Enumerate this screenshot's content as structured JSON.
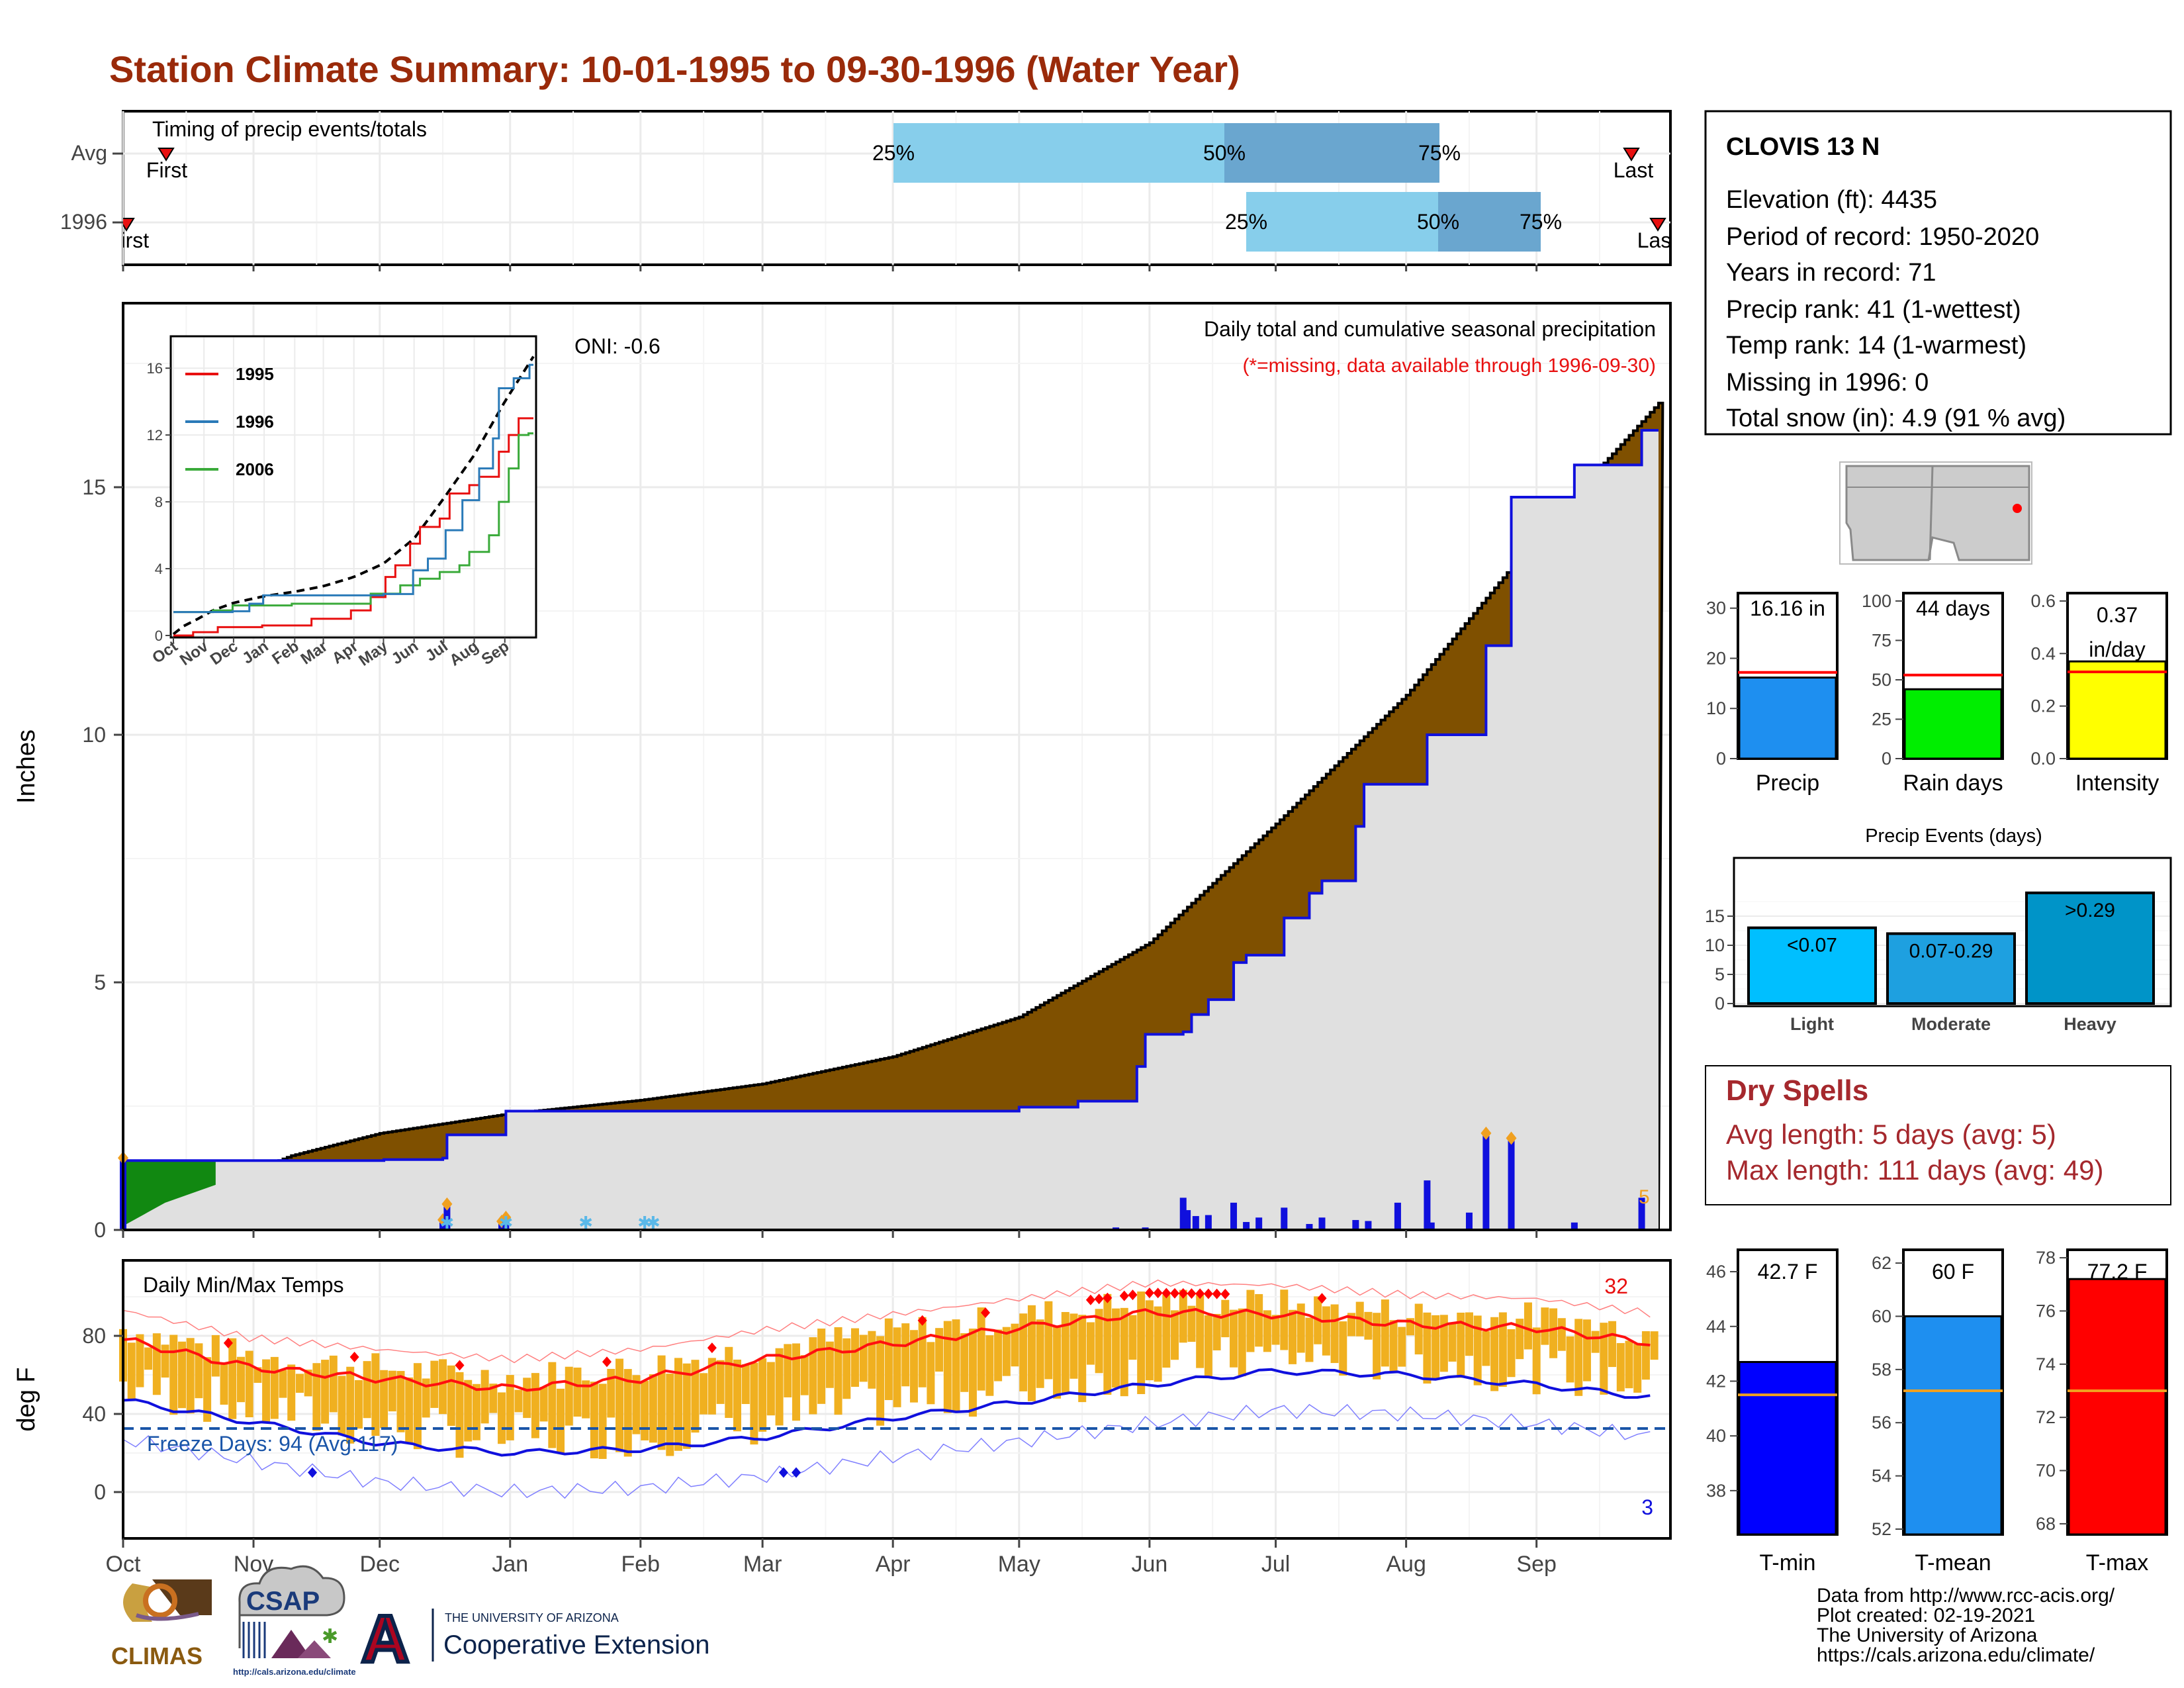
{
  "title": "Station Climate Summary: 10-01-1995 to 09-30-1996 (Water Year)",
  "colors": {
    "title": "#9a2a0a",
    "avg_cum": "#7f5000",
    "cur_cum": "#e0e0e0",
    "early_green": "#118811",
    "blue_line": "#1010dd",
    "orange": "#f0b020",
    "red": "#e81010",
    "light_blue": "#87ceeb",
    "mid_blue": "#6aa6cf",
    "dry_spell": "#a5282d"
  },
  "timing": {
    "label": "Timing of precip events/totals",
    "rows": [
      "Avg",
      "1996"
    ],
    "avg": {
      "first_label": "First",
      "last_label": "Last",
      "p25": "25%",
      "p50": "50%",
      "p75": "75%"
    },
    "cur": {
      "first_label": "First",
      "last_label": "Last",
      "p25": "25%",
      "p50": "50%",
      "p75": "75%"
    }
  },
  "precip_panel": {
    "ylabel": "Inches",
    "yticks": [
      "0",
      "5",
      "10",
      "15"
    ],
    "oni": "ONI: -0.6",
    "caption": "Daily total and cumulative seasonal precipitation",
    "missing_note": "(*=missing, data available through 1996-09-30)",
    "snow_marker": "5"
  },
  "months": [
    "Oct",
    "Nov",
    "Dec",
    "Jan",
    "Feb",
    "Mar",
    "Apr",
    "May",
    "Jun",
    "Jul",
    "Aug",
    "Sep"
  ],
  "inset": {
    "yticks": [
      "0",
      "4",
      "8",
      "12",
      "16"
    ],
    "legend": [
      {
        "name": "1995",
        "color": "#e81010"
      },
      {
        "name": "1996",
        "color": "#2a7ab8"
      },
      {
        "name": "2006",
        "color": "#3aaa3a"
      }
    ]
  },
  "temp_panel": {
    "ylabel": "deg F",
    "label": "Daily Min/Max Temps",
    "yticks": [
      "0",
      "40",
      "80"
    ],
    "freeze": "Freeze Days: 94 (Avg:117)",
    "hot_count": "32",
    "cold_count": "3"
  },
  "station": {
    "name": "CLOVIS 13 N",
    "lines": [
      "Elevation (ft): 4435",
      "Period of record: 1950-2020",
      "Years in record: 71",
      "Precip rank: 41 (1-wettest)",
      "Temp rank: 14 (1-warmest)",
      "Missing in 1996: 0",
      "Total snow (in): 4.9 (91 % avg)"
    ]
  },
  "mini_bars": [
    {
      "label": "Precip",
      "value_text": "16.16 in",
      "yticks": [
        "0",
        "10",
        "20",
        "30"
      ],
      "ymax": 33,
      "value": 16.16,
      "avg": 17.2,
      "color": "#1e8ff0"
    },
    {
      "label": "Rain days",
      "value_text": "44 days",
      "yticks": [
        "0",
        "25",
        "50",
        "75",
        "100"
      ],
      "ymax": 105,
      "value": 44,
      "avg": 53,
      "color": "#00ee00"
    },
    {
      "label": "Intensity",
      "value_text": "0.37\nin/day",
      "yticks": [
        "0.0",
        "0.2",
        "0.4",
        "0.6"
      ],
      "ymax": 0.63,
      "value": 0.37,
      "avg": 0.33,
      "color": "#ffff00"
    }
  ],
  "precip_events": {
    "title": "Precip Events (days)",
    "yticks": [
      "0",
      "5",
      "10",
      "15"
    ],
    "ymax": 20,
    "bars": [
      {
        "cat": "Light",
        "label": "<0.07",
        "value": 13,
        "color": "#00bfff"
      },
      {
        "cat": "Moderate",
        "label": "0.07-0.29",
        "value": 12,
        "color": "#1ea0e0"
      },
      {
        "cat": "Heavy",
        "label": ">0.29",
        "value": 19,
        "color": "#0094c8"
      }
    ]
  },
  "dry_spells": {
    "title": "Dry Spells",
    "avg": "Avg length: 5 days (avg: 5)",
    "max": "Max length: 111 days (avg: 49)"
  },
  "temp_bars": [
    {
      "label": "T-min",
      "value_text": "42.7 F",
      "yticks": [
        "38",
        "40",
        "42",
        "44",
        "46"
      ],
      "ymin": 36.4,
      "ymax": 46.8,
      "value": 42.7,
      "avg": 41.5,
      "color": "#0000ff"
    },
    {
      "label": "T-mean",
      "value_text": "60 F",
      "yticks": [
        "52",
        "54",
        "56",
        "58",
        "60",
        "62"
      ],
      "ymin": 51.8,
      "ymax": 62.5,
      "value": 60.0,
      "avg": 57.2,
      "color": "#1e8ff0"
    },
    {
      "label": "T-max",
      "value_text": "77.2 F",
      "yticks": [
        "68",
        "70",
        "72",
        "74",
        "76",
        "78"
      ],
      "ymin": 67.6,
      "ymax": 78.3,
      "value": 77.2,
      "avg": 73.0,
      "color": "#ff0000"
    }
  ],
  "footer": {
    "lines": [
      "Data from http://www.rcc-acis.org/",
      "Plot created: 02-19-2021",
      "The University of Arizona",
      "https://cals.arizona.edu/climate/"
    ],
    "climas": "CLIMAS",
    "csap": "CSAP",
    "csap_url": "http://cals.arizona.edu/climate",
    "ua_small": "THE UNIVERSITY OF ARIZONA",
    "ua_big": "Cooperative Extension",
    "ua_letter": "A"
  }
}
